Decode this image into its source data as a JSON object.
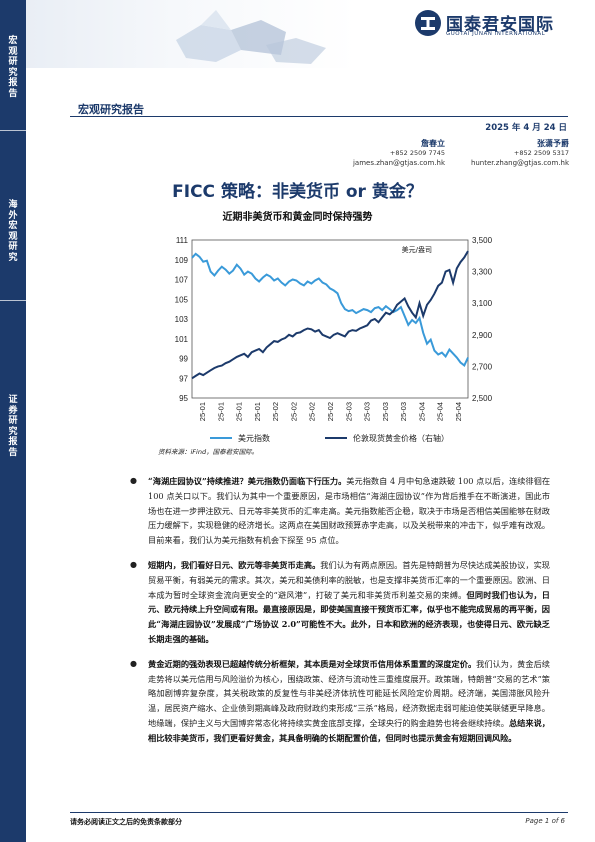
{
  "sidebar": {
    "sections": [
      {
        "label": "宏观研究报告",
        "chars": [
          "宏",
          "观",
          "研",
          "究",
          "报",
          "告"
        ]
      },
      {
        "label": "海外宏观研究",
        "chars": [
          "海",
          "外",
          "宏",
          "观",
          "研",
          "究"
        ]
      },
      {
        "label": "证券研究报告",
        "chars": [
          "证",
          "券",
          "研",
          "究",
          "报",
          "告"
        ]
      }
    ]
  },
  "header": {
    "logo_cn": "国泰君安国际",
    "logo_en": "GUOTAI JUNAN INTERNATIONAL",
    "report_type": "宏观研究报告",
    "date": "2025 年 4 月 24 日"
  },
  "authors": [
    {
      "name": "詹春立",
      "phone": "+852 2509 7745",
      "email": "james.zhan@gtjas.com.hk"
    },
    {
      "name": "张潇予爵",
      "phone": "+852 2509 5317",
      "email": "hunter.zhang@gtjas.com.hk"
    }
  ],
  "title": "FICC 策略：非美货币 or 黄金？",
  "subtitle": "近期非美货币和黄金同时保持强势",
  "chart_data": {
    "type": "line",
    "title": "近期非美货币和黄金同时保持强势",
    "unit_label": "美元/盎司",
    "x_ticks": [
      "25-01",
      "25-01",
      "25-01",
      "25-01",
      "25-02",
      "25-02",
      "25-02",
      "25-02",
      "25-03",
      "25-03",
      "25-03",
      "25-03",
      "25-04",
      "25-04",
      "25-04"
    ],
    "left_axis": {
      "ylim": [
        95,
        111
      ],
      "ticks": [
        "95",
        "97",
        "99",
        "101",
        "103",
        "105",
        "107",
        "109",
        "111"
      ]
    },
    "right_axis": {
      "ylim": [
        2500,
        3500
      ],
      "ticks": [
        "2,500",
        "2,700",
        "2,900",
        "3,100",
        "3,300",
        "3,500"
      ]
    },
    "series": [
      {
        "name": "美元指数",
        "axis": "left",
        "color": "#3a9ad9",
        "values": [
          109.2,
          109.6,
          109.3,
          108.8,
          108.9,
          107.8,
          107.4,
          107.9,
          108.3,
          108.0,
          107.6,
          107.9,
          108.5,
          108.1,
          107.5,
          107.8,
          107.6,
          107.1,
          106.8,
          107.2,
          107.5,
          107.3,
          106.9,
          107.1,
          106.7,
          106.4,
          106.8,
          107.0,
          106.9,
          106.6,
          106.4,
          106.8,
          106.6,
          106.9,
          107.1,
          106.7,
          106.5,
          106.1,
          105.9,
          105.6,
          104.6,
          104.0,
          103.8,
          103.9,
          103.6,
          103.8,
          104.0,
          103.9,
          103.7,
          104.1,
          104.2,
          103.9,
          104.3,
          104.0,
          103.7,
          103.9,
          104.2,
          103.3,
          102.4,
          102.9,
          102.6,
          103.1,
          101.6,
          100.5,
          100.9,
          99.8,
          99.4,
          99.6,
          99.2,
          99.9,
          99.5,
          99.1,
          98.6,
          98.3,
          99.1
        ]
      },
      {
        "name": "伦敦现货黄金价格（右轴）",
        "axis": "right",
        "color": "#1c3a6b",
        "values": [
          2625,
          2640,
          2655,
          2645,
          2660,
          2675,
          2690,
          2700,
          2705,
          2720,
          2730,
          2745,
          2760,
          2770,
          2780,
          2760,
          2790,
          2800,
          2810,
          2790,
          2820,
          2840,
          2860,
          2855,
          2870,
          2880,
          2900,
          2890,
          2910,
          2915,
          2930,
          2940,
          2935,
          2920,
          2930,
          2900,
          2890,
          2880,
          2900,
          2910,
          2900,
          2890,
          2920,
          2930,
          2925,
          2940,
          2950,
          2960,
          2990,
          3000,
          2980,
          3010,
          3040,
          3030,
          3050,
          3090,
          3110,
          3130,
          3080,
          3040,
          3010,
          3100,
          3020,
          3090,
          3120,
          3160,
          3210,
          3230,
          3300,
          3310,
          3230,
          3320,
          3360,
          3390,
          3430
        ]
      }
    ]
  },
  "source": "资料来源：iFind，国泰君安国际。",
  "bullets": [
    {
      "bold": "“海湖庄园协议”持续推进？美元指数仍面临下行压力。",
      "text": "美元指数自 4 月中旬急速跌破 100 点以后，连续徘徊在 100 点关口以下。我们认为其中一个重要原因，是市场相信“海湖庄园协议”作为背后推手在不断演进，国此市场也在进一步押注欧元、日元等非美货币的汇率走高。美元指数能否企稳，取决于市场是否相信美国能够在财政压力缓解下，实现稳健的经济增长。这两点在美国财政预算赤字走高，以及关税带来的冲击下，似乎难有改观。目前来看，我们认为美元指数有机会下探至 95 点位。",
      "tail": ""
    },
    {
      "bold": "短期内，我们看好日元、欧元等非美货币走高。",
      "text": "我们认为有两点原因。首先是特朗普为尽快达成美股协议，实现贸易平衡，有弱美元的需求。其次，美元和美债利率的脱敏，也是支撑非美货币汇率的一个重要原因。欧洲、日本成为暂时全球资金流向更安全的“避风港”，打破了美元和非美货币利差交易的束缚。",
      "tail": "但同时我们也认为，日元、欧元持续上升空间或有限。最直接原因是，即使美国直接干预货币汇率，似乎也不能完成贸易的再平衡，因此“海湖庄园协议”发展成“广场协议 2.0”可能性不大。此外，日本和欧洲的经济表现，也使得日元、欧元缺乏长期走强的基础。"
    },
    {
      "bold": "黄金近期的强劲表现已超越传统分析框架，其本质是对全球货币信用体系重置的深度定价。",
      "text": "我们认为，黄金后续走势将以美元信用与风险溢价为核心，围绕政策、经济与流动性三重维度展开。政策端，特朗普“交易的艺术”策略加剧博弈复杂度，其关税政策的反复性与非美经济体抗性可能延长风险定价周期。经济端，美国滞胀风险升温，居民资产缩水、企业债到期高峰及政府财政约束形成“三杀”格局，经济数据走弱可能迫使美联储更早降息。地缘端，保护主义与大国博弈常态化将持续实黄金底部支撑，全球央行的购金趋势也将会继续持续。",
      "tail": "总结来说，相比较非美货币，我们更看好黄金，其具备明确的长期配置价值，但同时也提示黄金有短期回调风险。"
    }
  ],
  "footer": {
    "disclaimer": "请务必阅读正文之后的免责条款部分",
    "page": "Page 1 of 6"
  }
}
